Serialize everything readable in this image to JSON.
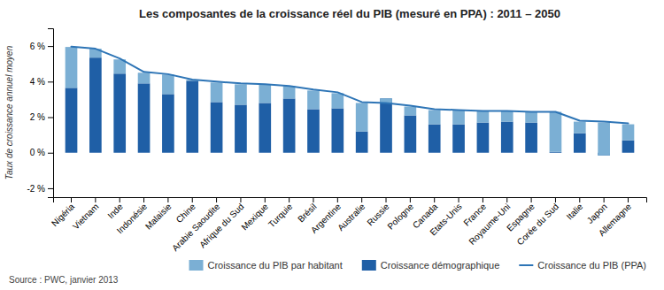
{
  "chart_data": {
    "type": "bar",
    "title": "Les composantes de la croissance réel du PIB (mesuré en PPA) : 2011 – 2050",
    "ylabel": "Taux de croissance annuel moyen",
    "annotations": [
      "Source : PWC, janvier 2013"
    ],
    "stacked": true,
    "grid": false,
    "legend": "bottom",
    "categories": [
      "Nigéria",
      "Vietnam",
      "Inde",
      "Indonésie",
      "Malaisie",
      "Chine",
      "Arabie Saoudite",
      "Afrique du Sud",
      "Mexique",
      "Turquie",
      "Brésil",
      "Argentine",
      "Australie",
      "Russie",
      "Pologne",
      "Canada",
      "Etats-Unis",
      "France",
      "Royaume-Uni",
      "Espagne",
      "Corée du Sud",
      "Italie",
      "Japon",
      "Allemagne"
    ],
    "series": [
      {
        "name": "Croissance démographique",
        "type": "bar",
        "color": "#1f5fa6",
        "values": [
          3.65,
          5.35,
          4.45,
          3.9,
          3.3,
          4.05,
          2.85,
          2.7,
          2.8,
          3.05,
          2.45,
          2.5,
          1.2,
          3.05,
          2.1,
          1.6,
          1.6,
          1.7,
          1.75,
          1.7,
          0.05,
          1.1,
          -0.15,
          0.7
        ]
      },
      {
        "name": "Croissance du PIB par habitant",
        "type": "bar",
        "color": "#7bafd4",
        "values": [
          2.3,
          0.5,
          0.8,
          0.6,
          1.1,
          0.05,
          1.1,
          1.15,
          1.05,
          0.7,
          1.05,
          0.85,
          1.6,
          -0.25,
          0.5,
          0.8,
          0.8,
          0.65,
          0.6,
          0.6,
          2.25,
          0.65,
          1.85,
          0.9
        ]
      },
      {
        "name": "Croissance du PIB (PPA)",
        "type": "line",
        "color": "#2e75b6",
        "values": [
          5.97,
          5.85,
          5.3,
          4.55,
          4.42,
          4.12,
          4.0,
          3.9,
          3.85,
          3.75,
          3.55,
          3.4,
          2.85,
          2.8,
          2.65,
          2.45,
          2.4,
          2.35,
          2.35,
          2.3,
          2.3,
          1.8,
          1.75,
          1.65
        ]
      }
    ],
    "ylim": [
      -2.5,
      7.0
    ],
    "yticks": [
      {
        "value": -2,
        "label": "-2 %"
      },
      {
        "value": 0,
        "label": "0 %"
      },
      {
        "value": 2,
        "label": "2 %"
      },
      {
        "value": 4,
        "label": "4 %"
      },
      {
        "value": 6,
        "label": "6 %"
      }
    ]
  }
}
